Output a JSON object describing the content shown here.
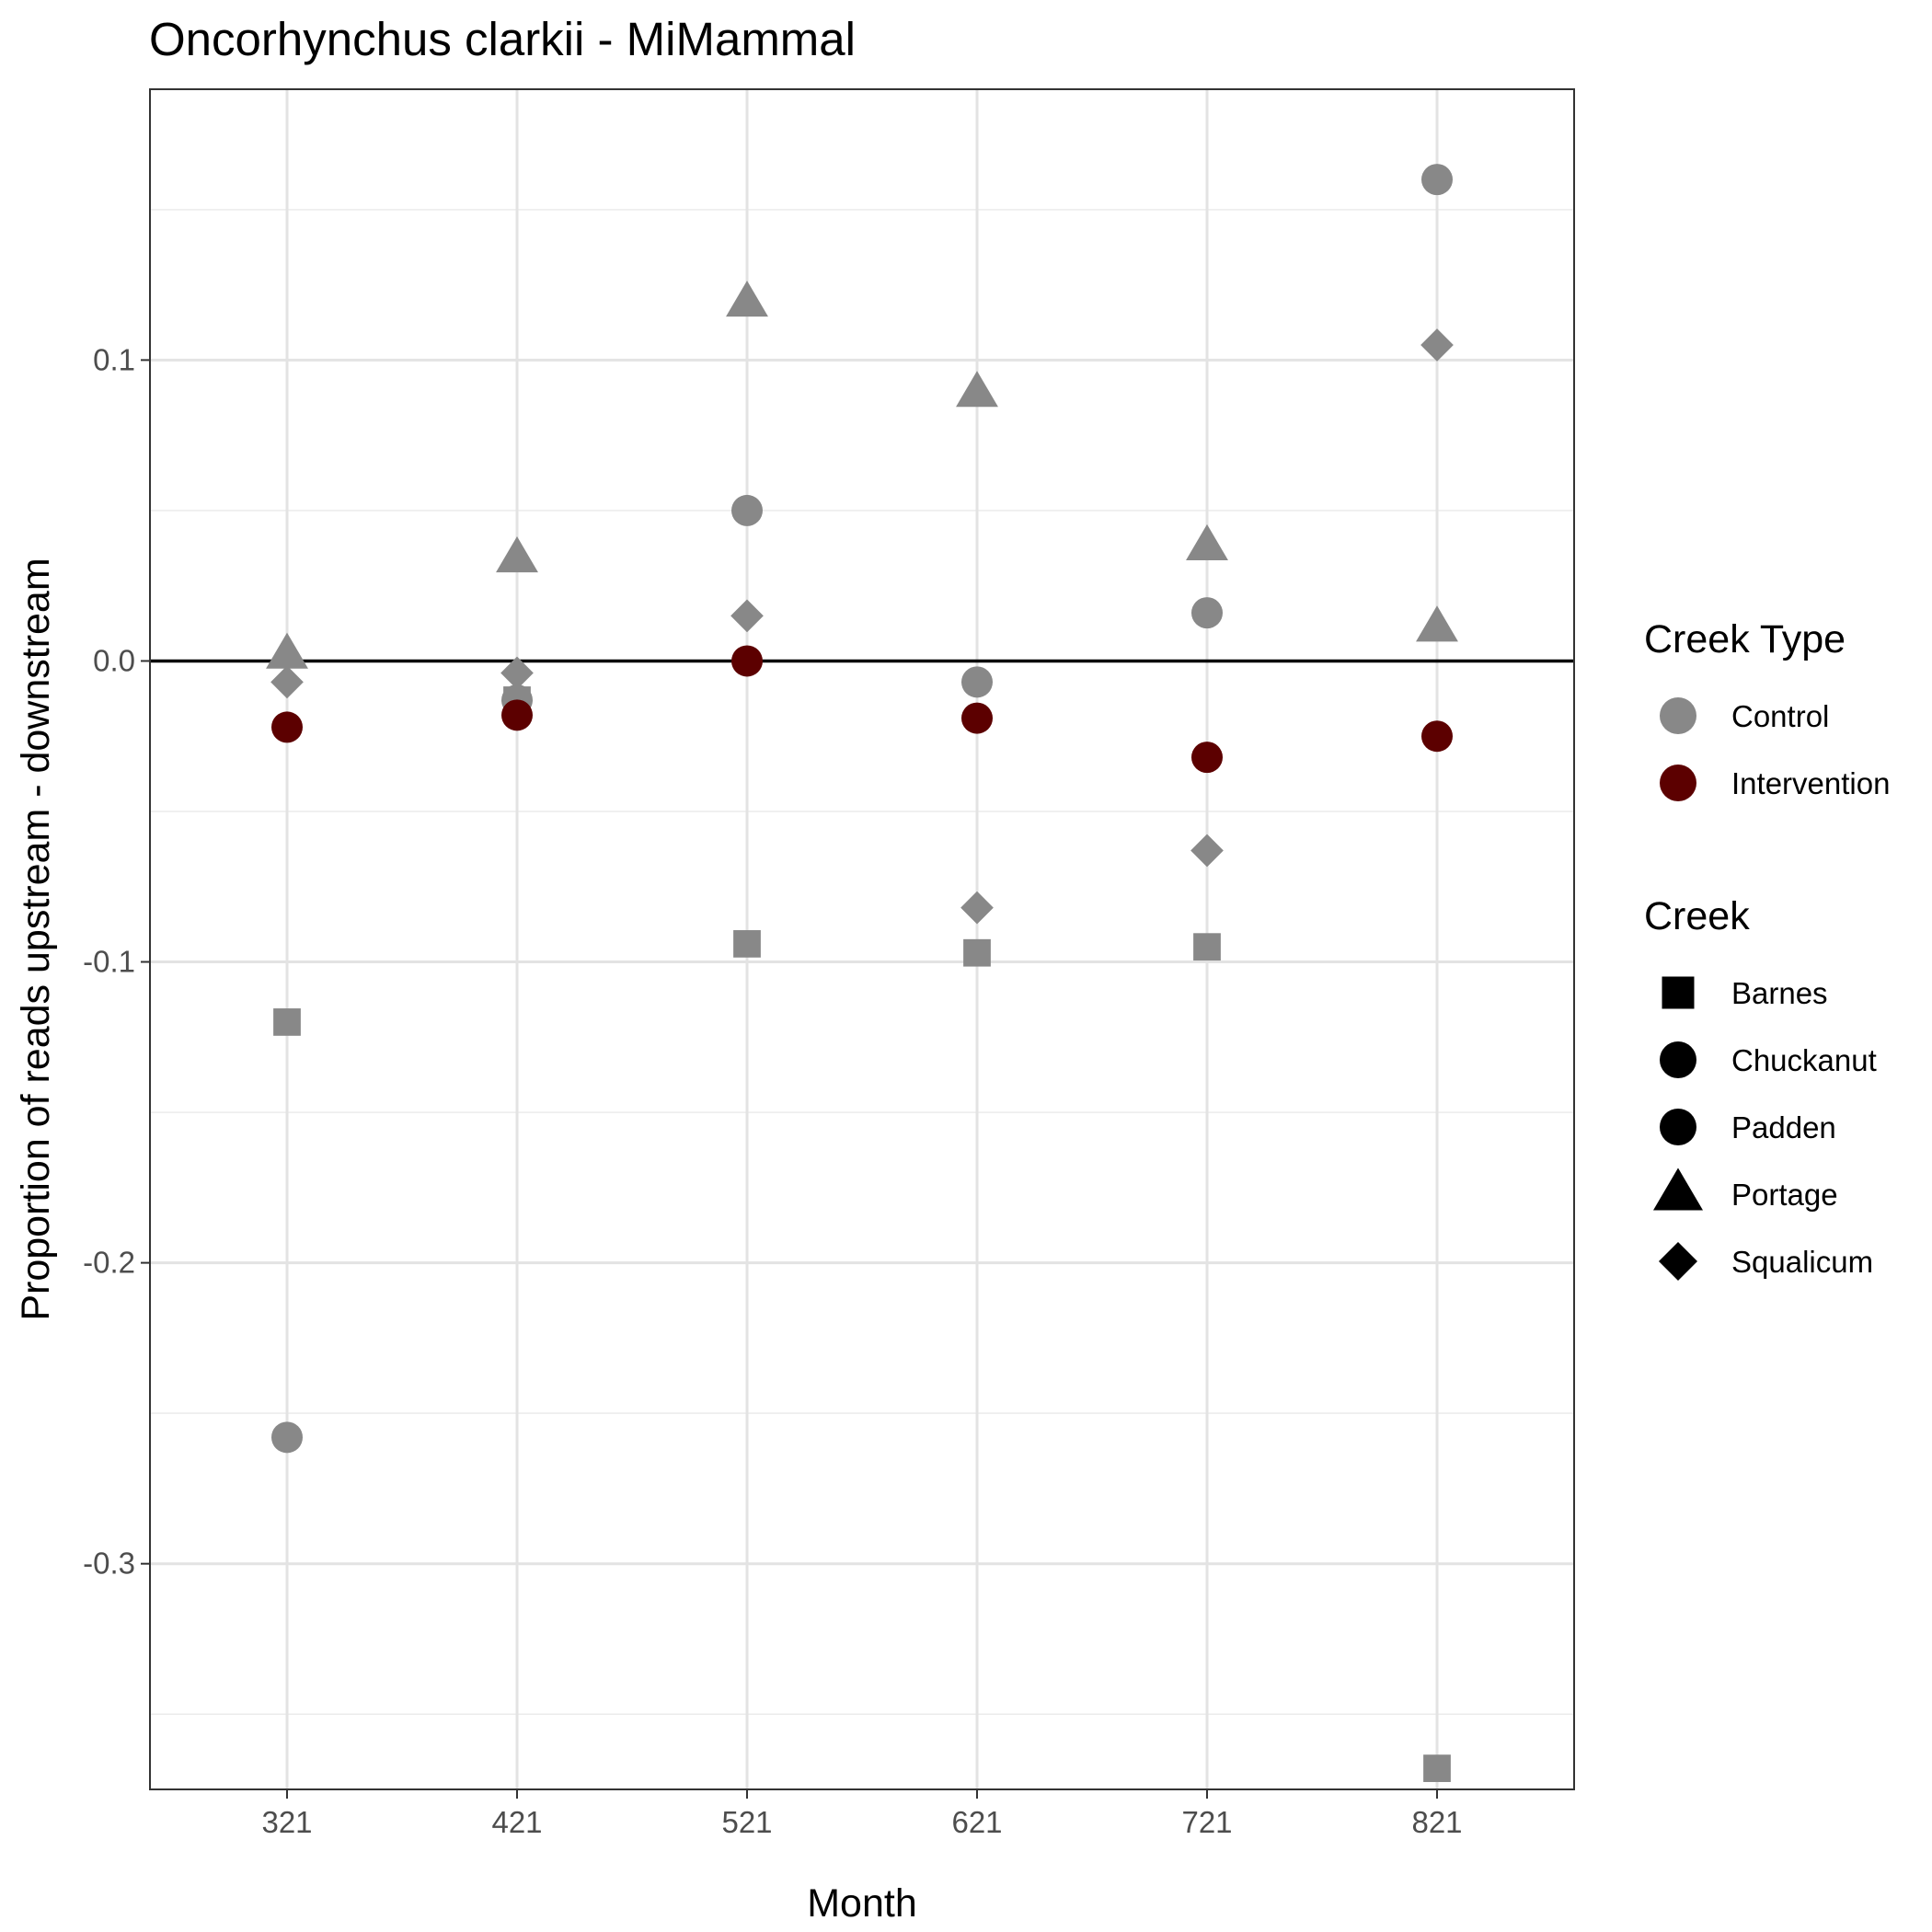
{
  "chart_data": {
    "type": "scatter",
    "title": "Oncorhynchus clarkii - MiMammal",
    "xlabel": "Month",
    "ylabel": "Proportion of reads upstream - downstream",
    "categories": [
      "321",
      "421",
      "521",
      "621",
      "721",
      "821"
    ],
    "ylim": [
      -0.375,
      0.19
    ],
    "yticks": [
      0.1,
      0.0,
      -0.1,
      -0.2,
      -0.3
    ],
    "ytick_labels": [
      "0.1",
      "0.0",
      "-0.1",
      "-0.2",
      "-0.3"
    ],
    "reference_line": 0,
    "grid": true,
    "legend_position": "right",
    "legends": [
      {
        "title": "Creek Type",
        "entries": [
          {
            "label": "Control",
            "color": "#888888"
          },
          {
            "label": "Intervention",
            "color": "#5c0000"
          }
        ]
      },
      {
        "title": "Creek",
        "entries": [
          {
            "label": "Barnes",
            "shape": "square"
          },
          {
            "label": "Chuckanut",
            "shape": "circle"
          },
          {
            "label": "Padden",
            "shape": "circle"
          },
          {
            "label": "Portage",
            "shape": "triangle"
          },
          {
            "label": "Squalicum",
            "shape": "diamond"
          }
        ]
      }
    ],
    "series": [
      {
        "creek": "Barnes",
        "creek_type": "Control",
        "shape": "square",
        "values": [
          -0.12,
          -0.013,
          -0.094,
          -0.097,
          -0.095,
          -0.368
        ]
      },
      {
        "creek": "Chuckanut",
        "creek_type": "Control",
        "shape": "circle",
        "values": [
          -0.258,
          -0.013,
          0.05,
          -0.007,
          0.016,
          0.16
        ]
      },
      {
        "creek": "Padden",
        "creek_type": "Intervention",
        "shape": "circle",
        "values": [
          -0.022,
          -0.018,
          0.0,
          -0.019,
          -0.032,
          -0.025
        ]
      },
      {
        "creek": "Portage",
        "creek_type": "Control",
        "shape": "triangle",
        "values": [
          0.002,
          0.034,
          0.119,
          0.089,
          0.038,
          0.011
        ]
      },
      {
        "creek": "Squalicum",
        "creek_type": "Control",
        "shape": "diamond",
        "values": [
          -0.007,
          -0.004,
          0.015,
          -0.082,
          -0.063,
          0.105
        ]
      }
    ],
    "colors": {
      "Control": "#888888",
      "Intervention": "#5c0000"
    }
  }
}
